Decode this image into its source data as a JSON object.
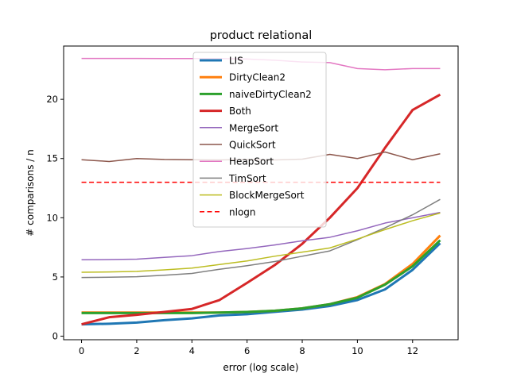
{
  "chart_data": {
    "type": "line",
    "title": "product relational",
    "xlabel": "error (log scale)",
    "ylabel": "# comparisons / n",
    "xlim": [
      -0.65,
      13.65
    ],
    "ylim": [
      -0.3,
      24.5
    ],
    "xticks": [
      0,
      2,
      4,
      6,
      8,
      10,
      12
    ],
    "yticks": [
      0,
      5,
      10,
      15,
      20
    ],
    "grid": false,
    "legend_position": "top-center",
    "x": [
      0,
      1,
      2,
      3,
      4,
      5,
      6,
      7,
      8,
      9,
      10,
      11,
      12,
      13
    ],
    "series": [
      {
        "name": "LIS",
        "color": "#1f77b4",
        "width": 3,
        "dash": "",
        "values": [
          1.0,
          1.05,
          1.15,
          1.35,
          1.5,
          1.75,
          1.85,
          2.05,
          2.25,
          2.55,
          3.05,
          3.95,
          5.6,
          7.85
        ]
      },
      {
        "name": "DirtyClean2",
        "color": "#ff7f0e",
        "width": 3,
        "dash": "",
        "values": [
          2.0,
          2.0,
          2.0,
          2.0,
          2.0,
          2.0,
          2.05,
          2.15,
          2.35,
          2.7,
          3.3,
          4.4,
          6.1,
          8.5
        ]
      },
      {
        "name": "naiveDirtyClean2",
        "color": "#2ca02c",
        "width": 3,
        "dash": "",
        "values": [
          1.95,
          1.95,
          1.95,
          1.95,
          1.95,
          2.0,
          2.05,
          2.15,
          2.35,
          2.7,
          3.25,
          4.35,
          5.9,
          8.1
        ]
      },
      {
        "name": "Both",
        "color": "#d62728",
        "width": 3,
        "dash": "",
        "values": [
          1.0,
          1.6,
          1.8,
          2.05,
          2.3,
          3.05,
          4.5,
          6.0,
          7.8,
          10.0,
          12.5,
          15.9,
          19.1,
          20.4
        ]
      },
      {
        "name": "MergeSort",
        "color": "#9467bd",
        "width": 1.5,
        "dash": "",
        "values": [
          6.45,
          6.47,
          6.5,
          6.65,
          6.8,
          7.15,
          7.4,
          7.7,
          8.05,
          8.35,
          8.9,
          9.55,
          10.0,
          10.45
        ]
      },
      {
        "name": "QuickSort",
        "color": "#8c564b",
        "width": 1.5,
        "dash": "",
        "values": [
          14.9,
          14.75,
          15.0,
          14.92,
          14.9,
          14.88,
          14.92,
          14.88,
          14.95,
          15.35,
          15.0,
          15.55,
          14.9,
          15.4
        ]
      },
      {
        "name": "HeapSort",
        "color": "#e377c2",
        "width": 1.5,
        "dash": "",
        "values": [
          23.45,
          23.45,
          23.45,
          23.44,
          23.44,
          23.44,
          23.4,
          23.3,
          23.15,
          23.1,
          22.6,
          22.5,
          22.6,
          22.6
        ]
      },
      {
        "name": "TimSort",
        "color": "#7f7f7f",
        "width": 1.5,
        "dash": "",
        "values": [
          4.95,
          4.98,
          5.02,
          5.15,
          5.3,
          5.65,
          5.95,
          6.3,
          6.75,
          7.2,
          8.15,
          9.15,
          10.25,
          11.55
        ]
      },
      {
        "name": "BlockMergeSort",
        "color": "#bcbd22",
        "width": 1.5,
        "dash": "",
        "values": [
          5.4,
          5.42,
          5.47,
          5.6,
          5.75,
          6.05,
          6.35,
          6.75,
          7.1,
          7.45,
          8.2,
          9.0,
          9.75,
          10.4
        ]
      },
      {
        "name": "nlogn",
        "color": "#ff0000",
        "width": 1.5,
        "dash": "6,3.5",
        "values": [
          13.0,
          13.0,
          13.0,
          13.0,
          13.0,
          13.0,
          13.0,
          13.0,
          13.0,
          13.0,
          13.0,
          13.0,
          13.0,
          13.0
        ]
      }
    ]
  }
}
